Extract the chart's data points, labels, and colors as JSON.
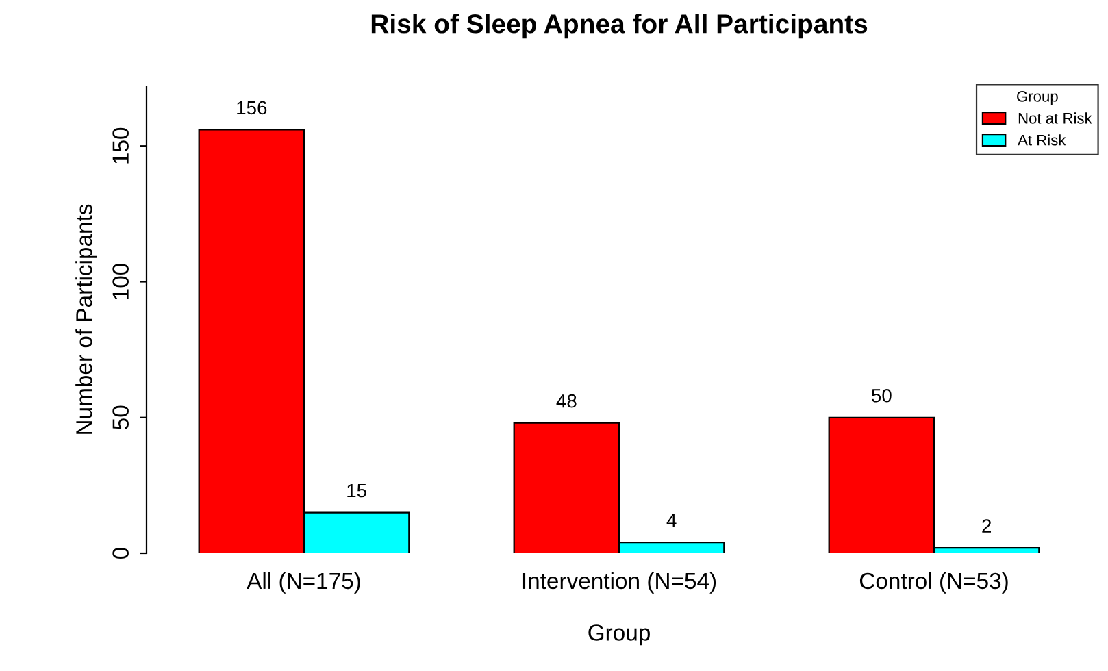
{
  "chart_data": {
    "type": "bar",
    "title": "Risk of Sleep Apnea for All Participants",
    "xlabel": "Group",
    "ylabel": "Number of Participants",
    "categories": [
      "All (N=175)",
      "Intervention (N=54)",
      "Control (N=53)"
    ],
    "series": [
      {
        "name": "Not at Risk",
        "color": "#ff0000",
        "values": [
          156,
          48,
          50
        ]
      },
      {
        "name": "At Risk",
        "color": "#00ffff",
        "values": [
          15,
          4,
          2
        ]
      }
    ],
    "legend_title": "Group",
    "legend": "top right",
    "ylim": [
      0,
      172
    ],
    "yticks": [
      0,
      50,
      100,
      150
    ],
    "grid": false,
    "data_labels": true
  }
}
